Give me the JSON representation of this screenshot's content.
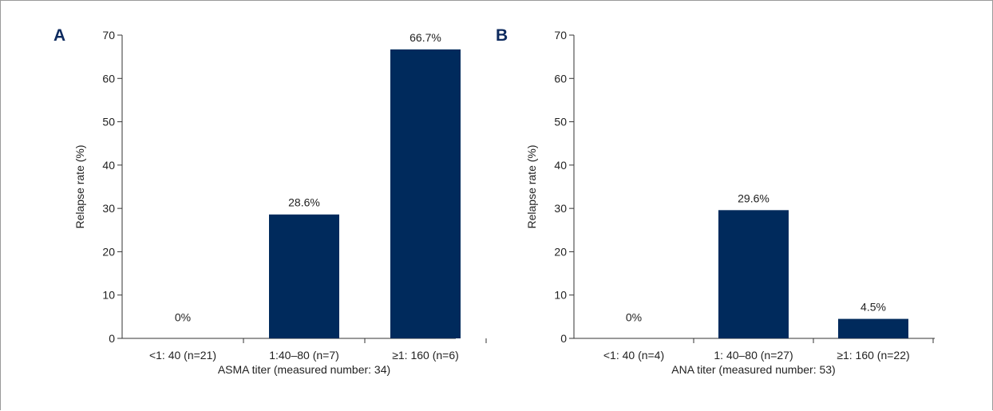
{
  "colors": {
    "bar": "#002a5c",
    "axis": "#333333",
    "panel_letter": "#0d2a5e"
  },
  "chart_data": [
    {
      "type": "bar",
      "panel": "A",
      "categories": [
        "<1: 40 (n=21)",
        "1:40–80 (n=7)",
        "≥1: 160 (n=6)"
      ],
      "values": [
        0,
        28.6,
        66.7
      ],
      "data_labels": [
        "0%",
        "28.6%",
        "66.7%"
      ],
      "ylabel": "Relapse rate (%)",
      "xlabel": "ASMA titer (measured number: 34)",
      "ylim": [
        0,
        70
      ],
      "yticks": [
        0,
        10,
        20,
        30,
        40,
        50,
        60,
        70
      ],
      "grid": false
    },
    {
      "type": "bar",
      "panel": "B",
      "categories": [
        "<1: 40 (n=4)",
        "1: 40–80 (n=27)",
        "≥1: 160 (n=22)"
      ],
      "values": [
        0,
        29.6,
        4.5
      ],
      "data_labels": [
        "0%",
        "29.6%",
        "4.5%"
      ],
      "ylabel": "Relapse rate (%)",
      "xlabel": "ANA titer (measured number: 53)",
      "ylim": [
        0,
        70
      ],
      "yticks": [
        0,
        10,
        20,
        30,
        40,
        50,
        60,
        70
      ],
      "grid": false
    }
  ]
}
